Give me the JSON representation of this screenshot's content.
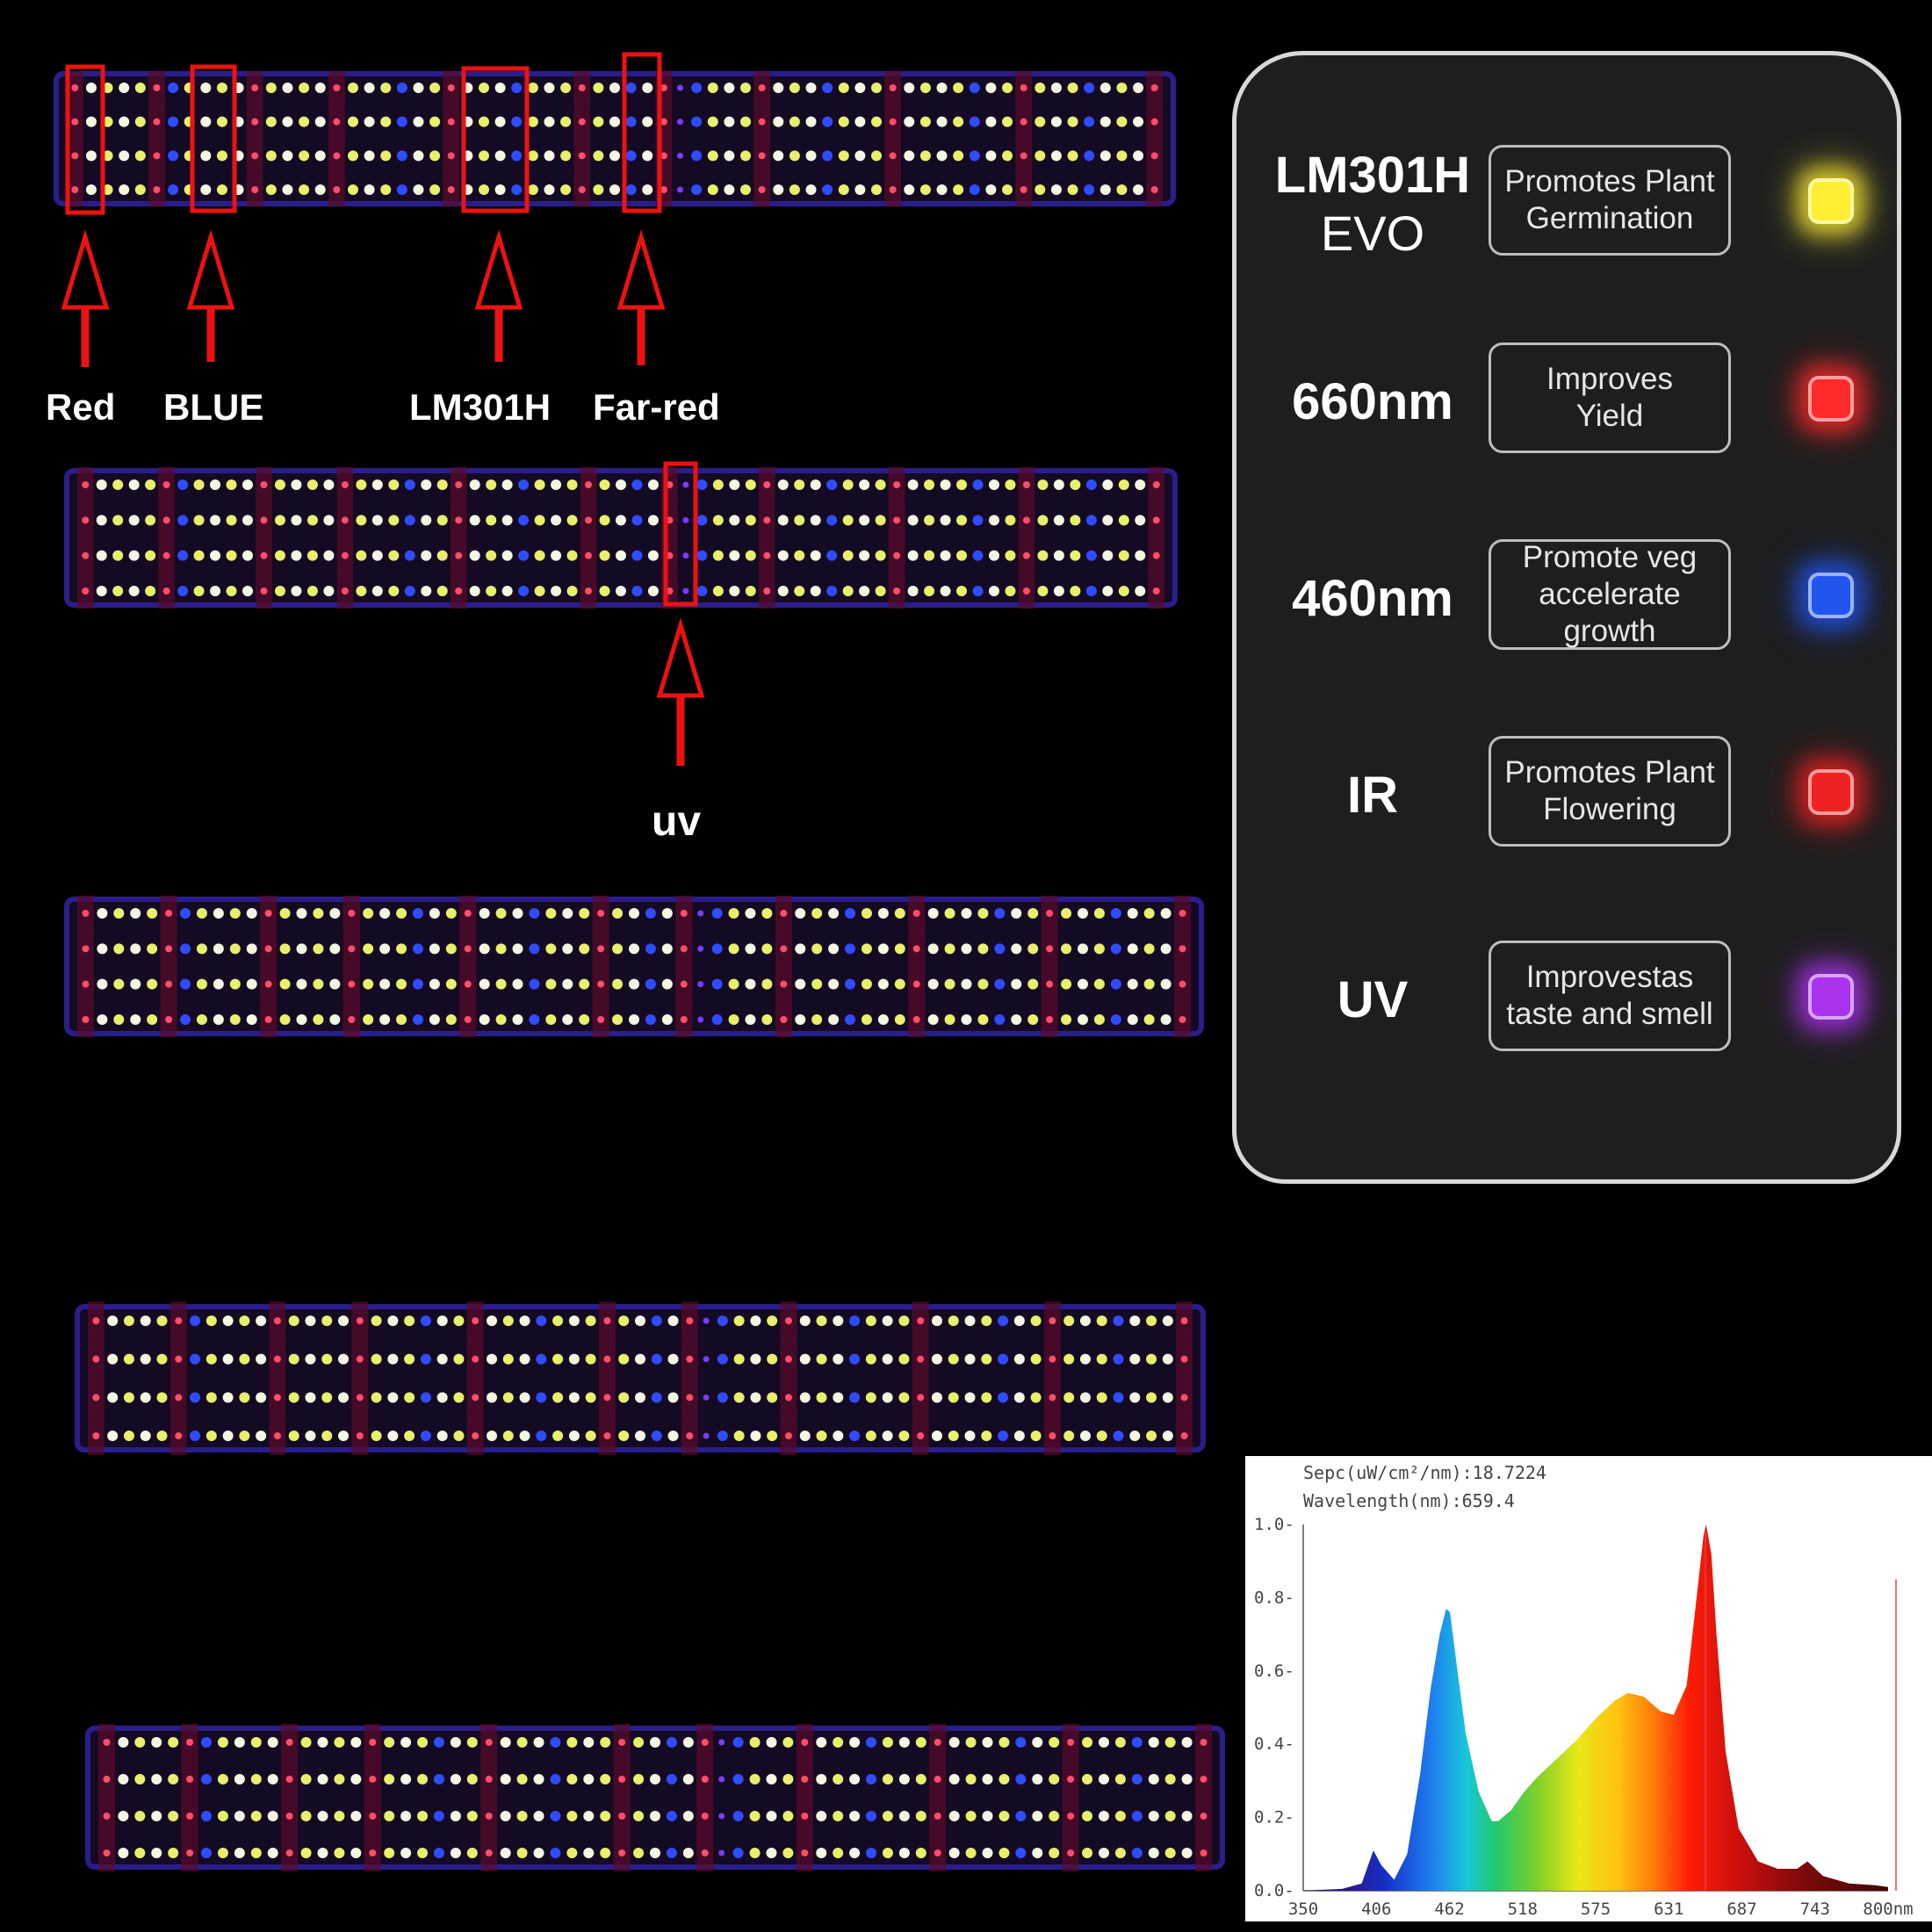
{
  "annotations": {
    "red": "Red",
    "blue": "BLUE",
    "lm301h": "LM301H",
    "far_red": "Far-red",
    "uv": "uv"
  },
  "legend": [
    {
      "name": "LM301H",
      "name2": "EVO",
      "line1": "Promotes Plant",
      "line2": "Germination",
      "color": "#ffee33"
    },
    {
      "name": "660nm",
      "name2": "",
      "line1": "Improves",
      "line2": "Yield",
      "color": "#ff2a2a"
    },
    {
      "name": "460nm",
      "name2": "",
      "line1": "Promote veg",
      "line2": "accelerate growth",
      "color": "#2255ee"
    },
    {
      "name": "IR",
      "name2": "",
      "line1": "Promotes Plant",
      "line2": "Flowering",
      "color": "#ee2222"
    },
    {
      "name": "UV",
      "name2": "",
      "line1": "Improvestas",
      "line2": "taste and smell",
      "color": "#aa33ee"
    }
  ],
  "chart_data": {
    "type": "area",
    "header_line1": "Sepc(uW/cm²/nm):18.7224",
    "header_line2": "Wavelength(nm):659.4",
    "xlim": [
      350,
      800
    ],
    "ylim": [
      0,
      1.0
    ],
    "x_ticks": [
      "350",
      "406",
      "462",
      "518",
      "575",
      "631",
      "687",
      "743",
      "800nm"
    ],
    "y_ticks": [
      "0.0",
      "0.2",
      "0.4",
      "0.6",
      "0.8",
      "1.0"
    ],
    "marker_x": 659.4,
    "x": [
      350,
      380,
      395,
      400,
      404,
      410,
      420,
      430,
      440,
      448,
      455,
      460,
      463,
      468,
      475,
      485,
      495,
      500,
      510,
      520,
      530,
      545,
      560,
      575,
      590,
      600,
      612,
      625,
      635,
      645,
      652,
      658,
      660,
      664,
      668,
      675,
      685,
      700,
      715,
      730,
      738,
      750,
      770,
      790,
      800
    ],
    "y": [
      0.0,
      0.005,
      0.02,
      0.07,
      0.11,
      0.07,
      0.03,
      0.1,
      0.32,
      0.55,
      0.7,
      0.77,
      0.76,
      0.62,
      0.43,
      0.27,
      0.19,
      0.19,
      0.22,
      0.27,
      0.31,
      0.36,
      0.41,
      0.47,
      0.52,
      0.54,
      0.53,
      0.49,
      0.48,
      0.56,
      0.78,
      0.97,
      1.0,
      0.92,
      0.7,
      0.38,
      0.17,
      0.08,
      0.06,
      0.06,
      0.08,
      0.04,
      0.02,
      0.015,
      0.01
    ]
  }
}
